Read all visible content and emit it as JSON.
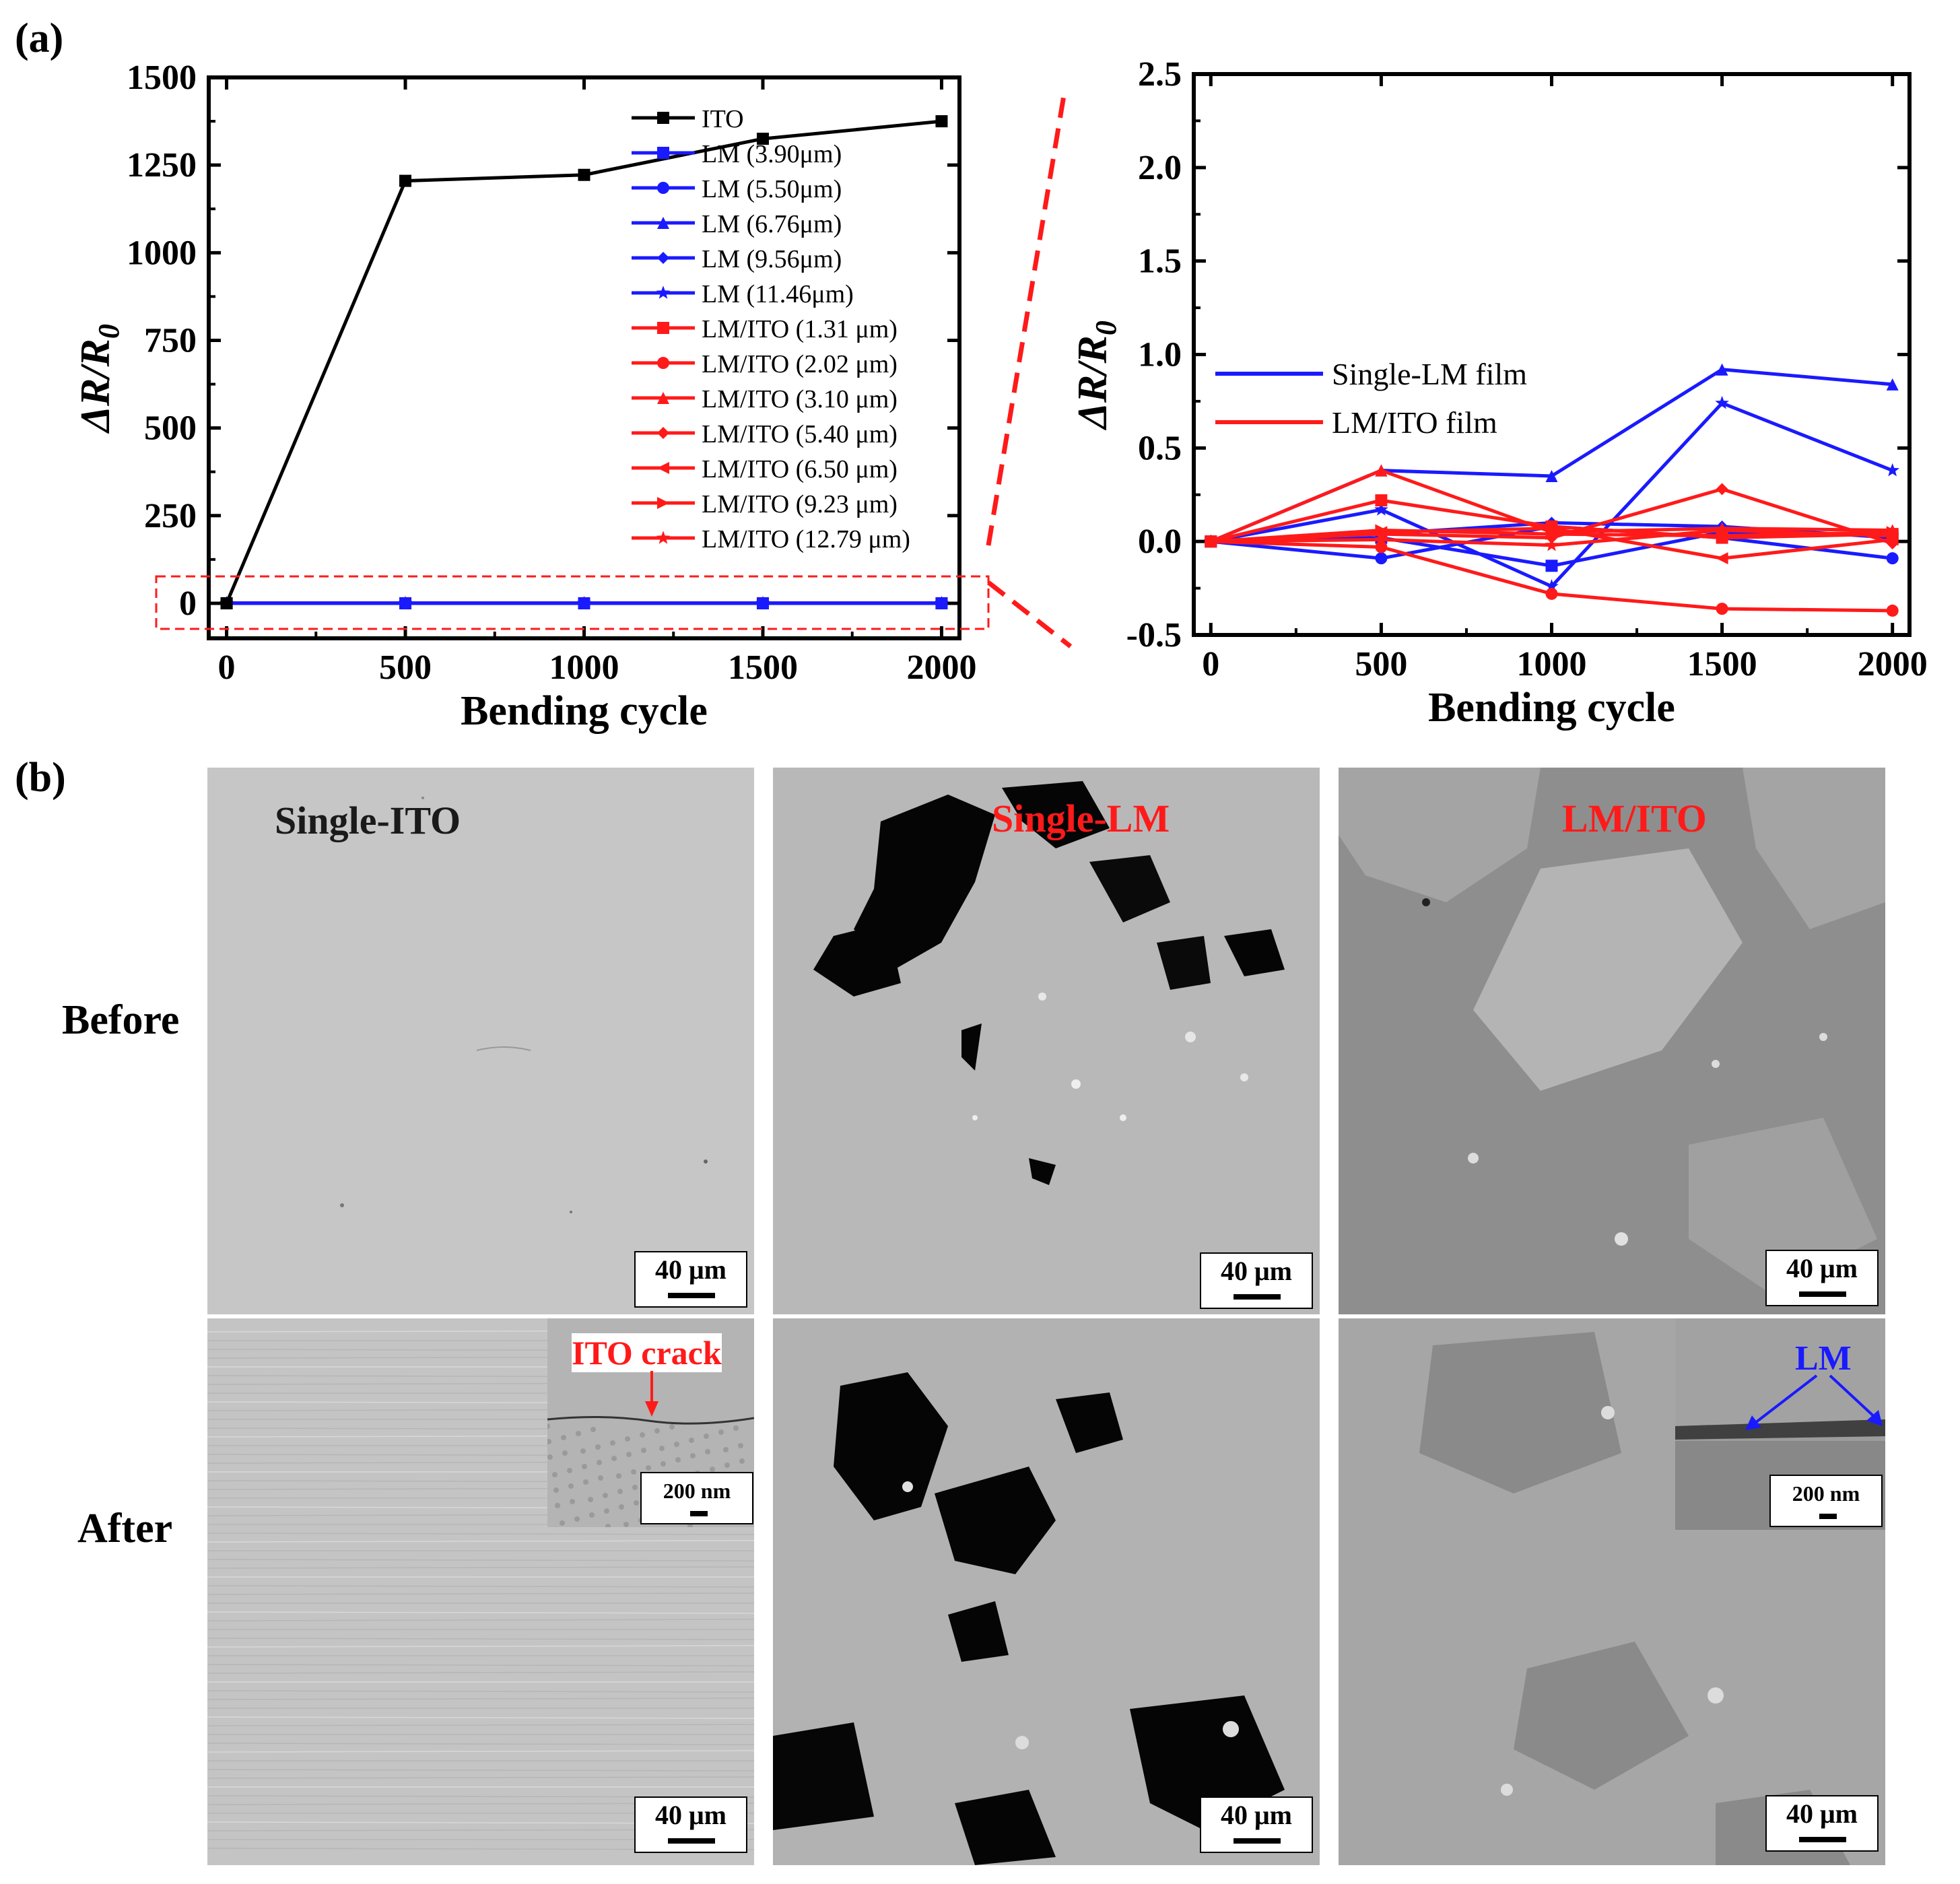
{
  "panel_a_label": "(a)",
  "panel_b_label": "(b)",
  "chart_data": [
    {
      "type": "line",
      "xlabel": "Bending cycle",
      "ylabel_main": "ΔR/R",
      "ylabel_sub": "0",
      "x": [
        0,
        500,
        1000,
        1500,
        2000
      ],
      "xticks": [
        "0",
        "500",
        "1000",
        "1500",
        "2000"
      ],
      "xlim": [
        -50,
        2050
      ],
      "ylim": [
        -100,
        1500
      ],
      "yticks": [
        "0",
        "250",
        "500",
        "750",
        "1000",
        "1250",
        "1500"
      ],
      "series": [
        {
          "name": "ITO",
          "color": "#000000",
          "marker": "square",
          "values": [
            0,
            1205,
            1222,
            1325,
            1375
          ]
        },
        {
          "name": "LM (3.90μm)",
          "color": "#1a1aff",
          "marker": "square",
          "values": [
            0,
            0,
            0,
            0,
            0
          ]
        },
        {
          "name": "LM (5.50μm)",
          "color": "#1a1aff",
          "marker": "circle",
          "values": [
            0,
            0,
            0,
            0,
            0
          ]
        },
        {
          "name": "LM (6.76μm)",
          "color": "#1a1aff",
          "marker": "triangle",
          "values": [
            0,
            0,
            0,
            0,
            0
          ]
        },
        {
          "name": "LM (9.56μm)",
          "color": "#1a1aff",
          "marker": "diamond",
          "values": [
            0,
            0,
            0,
            0,
            0
          ]
        },
        {
          "name": "LM (11.46μm)",
          "color": "#1a1aff",
          "marker": "star",
          "values": [
            0,
            0,
            0,
            0,
            0
          ]
        },
        {
          "name": "LM/ITO (1.31 μm)",
          "color": "#ff1a1a",
          "marker": "square",
          "values": [
            0,
            0,
            0,
            0,
            0
          ]
        },
        {
          "name": "LM/ITO (2.02 μm)",
          "color": "#ff1a1a",
          "marker": "circle",
          "values": [
            0,
            0,
            0,
            0,
            0
          ]
        },
        {
          "name": "LM/ITO (3.10 μm)",
          "color": "#ff1a1a",
          "marker": "triangle",
          "values": [
            0,
            0,
            0,
            0,
            0
          ]
        },
        {
          "name": "LM/ITO (5.40 μm)",
          "color": "#ff1a1a",
          "marker": "diamond",
          "values": [
            0,
            0,
            0,
            0,
            0
          ]
        },
        {
          "name": "LM/ITO (6.50 μm)",
          "color": "#ff1a1a",
          "marker": "tri-left",
          "values": [
            0,
            0,
            0,
            0,
            0
          ]
        },
        {
          "name": "LM/ITO (9.23 μm)",
          "color": "#ff1a1a",
          "marker": "tri-right",
          "values": [
            0,
            0,
            0,
            0,
            0
          ]
        },
        {
          "name": "LM/ITO (12.79 μm)",
          "color": "#ff1a1a",
          "marker": "star",
          "values": [
            0,
            0,
            0,
            0,
            0
          ]
        }
      ]
    },
    {
      "type": "line",
      "xlabel": "Bending cycle",
      "ylabel_main": "ΔR/R",
      "ylabel_sub": "0",
      "x": [
        0,
        500,
        1000,
        1500,
        2000
      ],
      "xticks": [
        "0",
        "500",
        "1000",
        "1500",
        "2000"
      ],
      "xlim": [
        -50,
        2050
      ],
      "ylim": [
        -0.5,
        2.5
      ],
      "yticks": [
        "-0.5",
        "0.0",
        "0.5",
        "1.0",
        "1.5",
        "2.0",
        "2.5"
      ],
      "legend": [
        {
          "name": "Single-LM film",
          "color": "#1a1aff"
        },
        {
          "name": "LM/ITO film",
          "color": "#ff1a1a"
        }
      ],
      "series": [
        {
          "name": "LM (3.90μm)",
          "color": "#1a1aff",
          "marker": "square",
          "values": [
            0,
            0.02,
            -0.13,
            0.05,
            0.03
          ]
        },
        {
          "name": "LM (5.50μm)",
          "color": "#1a1aff",
          "marker": "circle",
          "values": [
            0,
            -0.09,
            0.08,
            0.02,
            -0.09
          ]
        },
        {
          "name": "LM (6.76μm)",
          "color": "#1a1aff",
          "marker": "triangle",
          "values": [
            0,
            0.38,
            0.35,
            0.92,
            0.84
          ]
        },
        {
          "name": "LM (9.56μm)",
          "color": "#1a1aff",
          "marker": "diamond",
          "values": [
            0,
            0.04,
            0.1,
            0.08,
            0.02
          ]
        },
        {
          "name": "LM (11.46μm)",
          "color": "#1a1aff",
          "marker": "star",
          "values": [
            0,
            0.17,
            -0.24,
            0.74,
            0.38
          ]
        },
        {
          "name": "LM/ITO (1.31 μm)",
          "color": "#ff1a1a",
          "marker": "square",
          "values": [
            0,
            0.22,
            0.08,
            0.02,
            0.04
          ]
        },
        {
          "name": "LM/ITO (2.02 μm)",
          "color": "#ff1a1a",
          "marker": "circle",
          "values": [
            0,
            -0.03,
            -0.28,
            -0.36,
            -0.37
          ]
        },
        {
          "name": "LM/ITO (3.10 μm)",
          "color": "#ff1a1a",
          "marker": "triangle",
          "values": [
            0,
            0.38,
            0.05,
            0.07,
            0.06
          ]
        },
        {
          "name": "LM/ITO (5.40 μm)",
          "color": "#ff1a1a",
          "marker": "diamond",
          "values": [
            0,
            0.04,
            0.02,
            0.28,
            -0.01
          ]
        },
        {
          "name": "LM/ITO (6.50 μm)",
          "color": "#ff1a1a",
          "marker": "tri-left",
          "values": [
            0,
            0.05,
            0.07,
            -0.09,
            0.01
          ]
        },
        {
          "name": "LM/ITO (9.23 μm)",
          "color": "#ff1a1a",
          "marker": "tri-right",
          "values": [
            0,
            0.06,
            0.04,
            0.03,
            0.05
          ]
        },
        {
          "name": "LM/ITO (12.79 μm)",
          "color": "#ff1a1a",
          "marker": "star",
          "values": [
            0,
            0.01,
            -0.02,
            0.06,
            0.03
          ]
        }
      ]
    }
  ],
  "sem": {
    "row_before": "Before",
    "row_after": "After",
    "col1_title": "Single-ITO",
    "col2_title": "Single-LM",
    "col3_title": "LM/ITO",
    "scale_40": "40 μm",
    "scale_200": "200 nm",
    "ito_crack_label": "ITO crack",
    "lm_label": "LM",
    "title_colors": {
      "col1": "#000000",
      "col2": "#ff1a1a",
      "col3": "#ff1a1a",
      "crack": "#ff1a1a",
      "lm": "#1a1aff"
    }
  }
}
